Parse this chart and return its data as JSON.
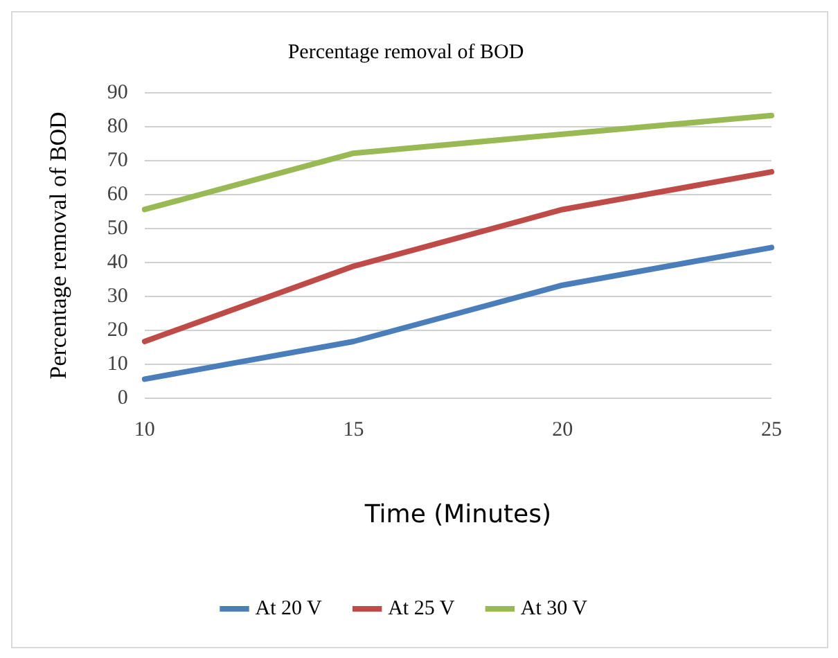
{
  "chart_data": {
    "type": "line",
    "title": "Percentage removal of BOD",
    "xlabel": "Time (Minutes)",
    "ylabel": "Percentage removal of BOD",
    "categories": [
      "10",
      "15",
      "20",
      "25"
    ],
    "series": [
      {
        "name": "At 20 V",
        "color": "#4a7ebb",
        "values": [
          5.6,
          16.7,
          33.3,
          44.4
        ]
      },
      {
        "name": "At 25 V",
        "color": "#be4b48",
        "values": [
          16.7,
          38.9,
          55.6,
          66.7
        ]
      },
      {
        "name": "At 30 V",
        "color": "#98b954",
        "values": [
          55.6,
          72.2,
          77.8,
          83.3
        ]
      }
    ],
    "ylim": [
      0,
      90
    ],
    "yticks": [
      0,
      10,
      20,
      30,
      40,
      50,
      60,
      70,
      80,
      90
    ],
    "grid": "y",
    "legend": "bottom",
    "marker": "none",
    "line_style": "solid"
  }
}
